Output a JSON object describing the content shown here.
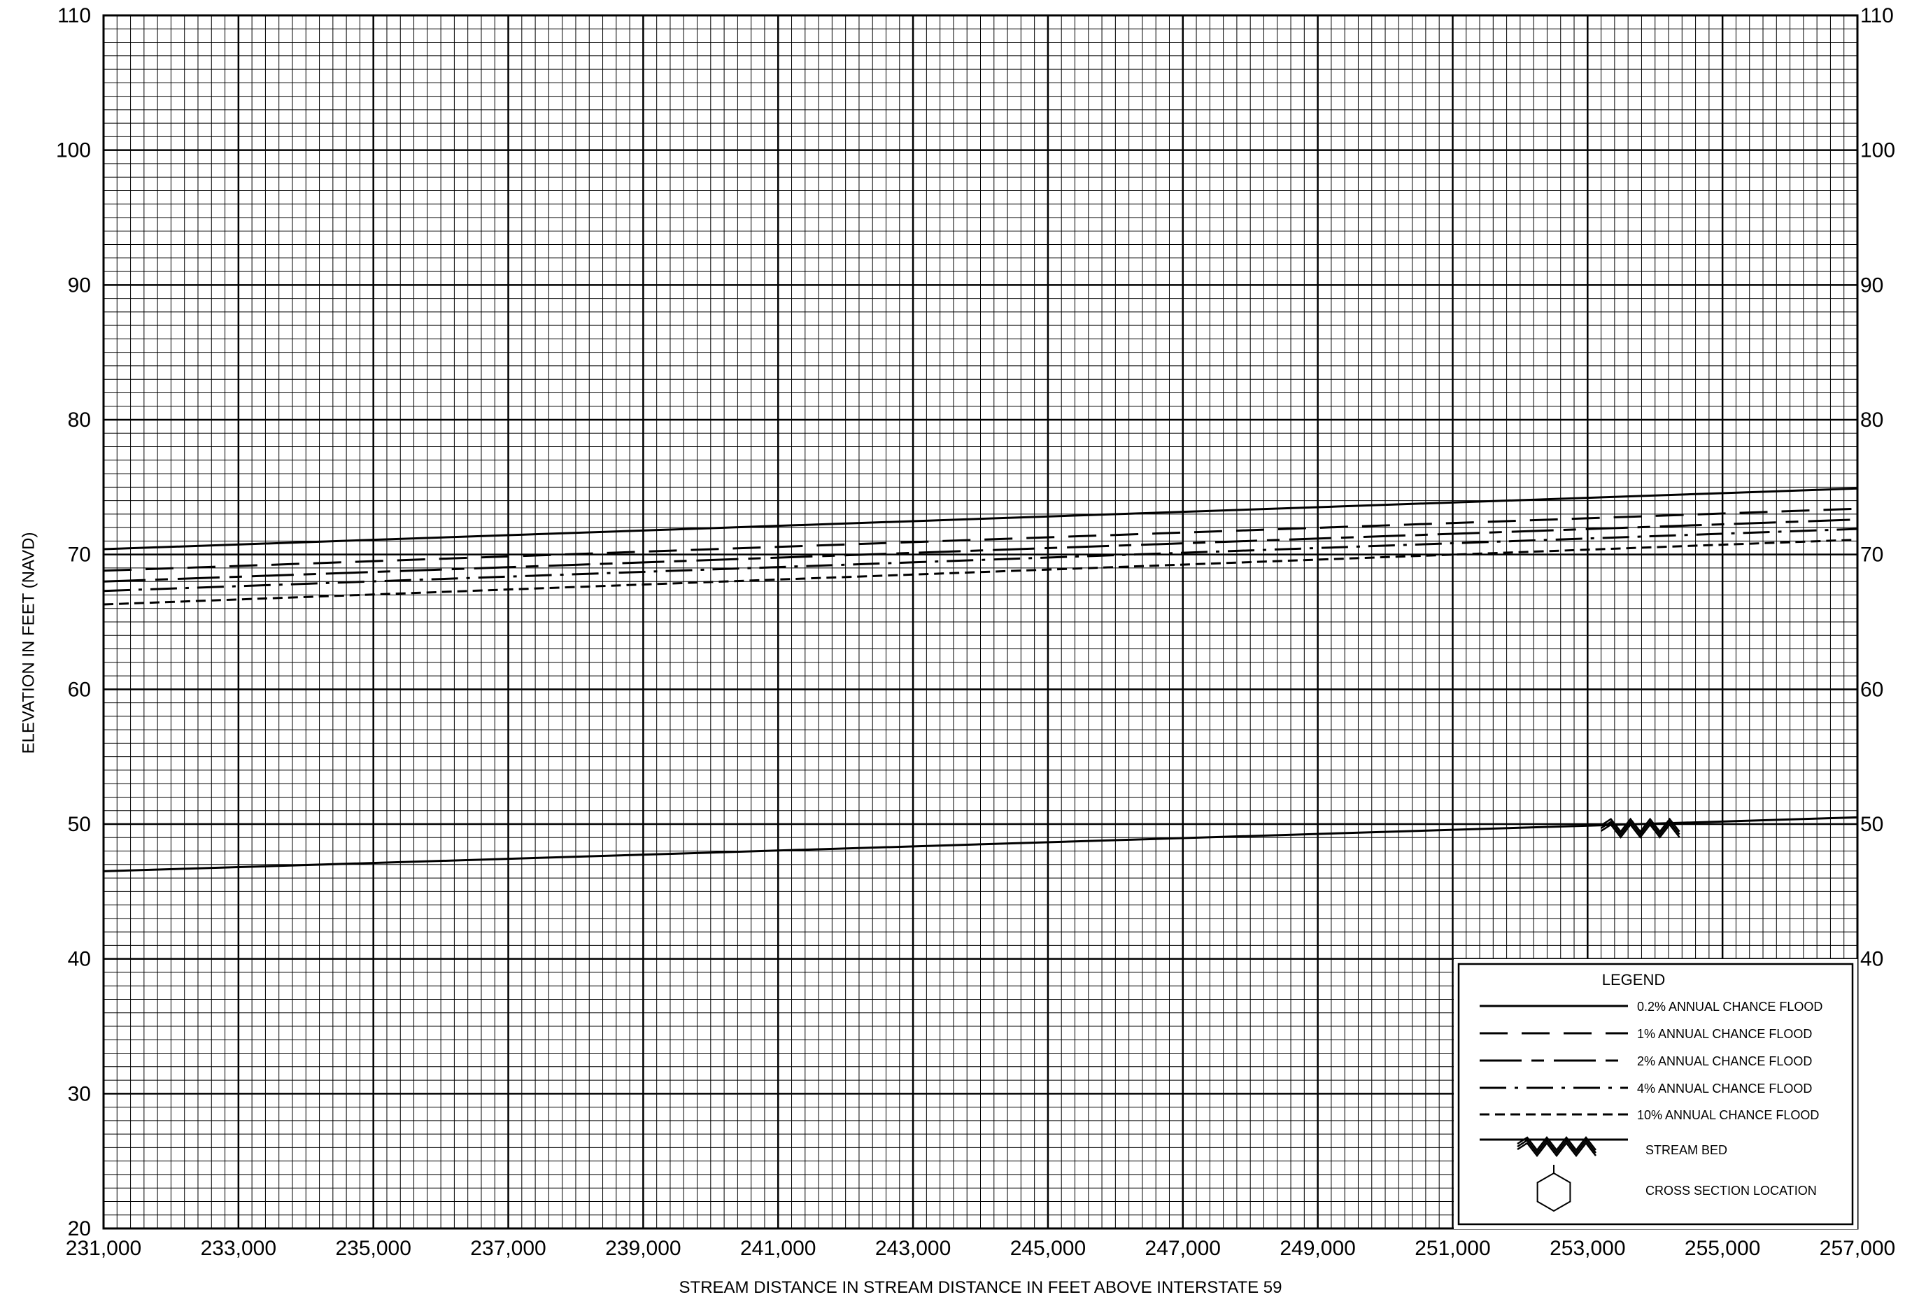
{
  "chart_data": {
    "type": "line",
    "title": "",
    "xlabel": "STREAM DISTANCE IN STREAM DISTANCE IN FEET ABOVE INTERSTATE 59",
    "ylabel": "ELEVATION IN FEET (NAVD)",
    "xlim": [
      231000,
      257000
    ],
    "ylim": [
      20,
      110
    ],
    "x_major_ticks": [
      231000,
      233000,
      235000,
      237000,
      239000,
      241000,
      243000,
      245000,
      247000,
      249000,
      251000,
      253000,
      255000,
      257000
    ],
    "x_tick_labels": [
      "231,000",
      "233,000",
      "235,000",
      "237,000",
      "239,000",
      "241,000",
      "243,000",
      "245,000",
      "247,000",
      "249,000",
      "251,000",
      "253,000",
      "255,000",
      "257,000"
    ],
    "y_major_ticks": [
      20,
      30,
      40,
      50,
      60,
      70,
      80,
      90,
      100,
      110
    ],
    "y_tick_labels": [
      "20",
      "30",
      "40",
      "50",
      "60",
      "70",
      "80",
      "90",
      "100",
      "110"
    ],
    "right_y_tick_labels": [
      "40",
      "50",
      "60",
      "70",
      "80",
      "90",
      "100",
      "110"
    ],
    "x_minor_step": 200,
    "y_minor_step": 1,
    "grid": true,
    "legend_position": "bottom-right",
    "series": [
      {
        "name": "0.2% ANNUAL CHANCE FLOOD",
        "style": "solid",
        "x": [
          231000,
          257000
        ],
        "y": [
          70.4,
          74.9
        ]
      },
      {
        "name": "1% ANNUAL CHANCE FLOOD",
        "style": "long-dash",
        "x": [
          231000,
          257000
        ],
        "y": [
          68.8,
          73.4
        ]
      },
      {
        "name": "2% ANNUAL CHANCE FLOOD",
        "style": "long-short-dash",
        "x": [
          231000,
          257000
        ],
        "y": [
          68.0,
          72.6
        ]
      },
      {
        "name": "4% ANNUAL CHANCE FLOOD",
        "style": "dash-dot",
        "x": [
          231000,
          257000
        ],
        "y": [
          67.3,
          71.9
        ]
      },
      {
        "name": "10% ANNUAL CHANCE FLOOD",
        "style": "short-dash",
        "x": [
          231000,
          257000
        ],
        "y": [
          66.3,
          71.1
        ]
      },
      {
        "name": "STREAM BED",
        "style": "solid",
        "x": [
          231000,
          257000
        ],
        "y": [
          46.5,
          50.5
        ]
      }
    ],
    "stream_bed_marker": {
      "x_start": 253200,
      "x_end": 254400,
      "y": 49.7
    },
    "legend": {
      "title": "LEGEND",
      "items": [
        {
          "label": "0.2% ANNUAL CHANCE FLOOD",
          "style": "solid"
        },
        {
          "label": "1% ANNUAL CHANCE FLOOD",
          "style": "long-dash"
        },
        {
          "label": "2% ANNUAL CHANCE FLOOD",
          "style": "long-short-dash"
        },
        {
          "label": "4% ANNUAL CHANCE FLOOD",
          "style": "dash-dot"
        },
        {
          "label": "10% ANNUAL CHANCE FLOOD",
          "style": "short-dash"
        },
        {
          "label": "STREAM BED",
          "style": "stream-bed"
        },
        {
          "label": "CROSS SECTION LOCATION",
          "style": "hexagon"
        }
      ]
    }
  }
}
